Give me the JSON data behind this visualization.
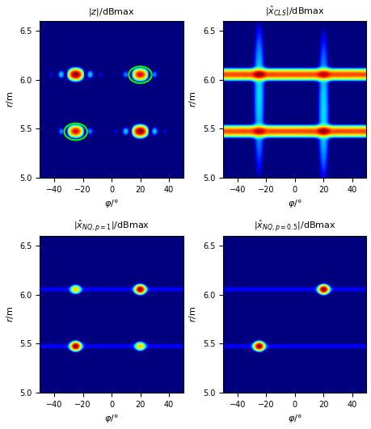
{
  "phi_range": [
    -50,
    50
  ],
  "r_range": [
    5.0,
    6.6
  ],
  "phi_ticks": [
    -40,
    -20,
    0,
    20,
    40
  ],
  "r_ticks": [
    5.0,
    5.5,
    6.0,
    6.5
  ],
  "targets": [
    {
      "phi": -25,
      "r": 6.05,
      "amp": 1.0
    },
    {
      "phi": 20,
      "r": 6.05,
      "amp": 0.7
    },
    {
      "phi": -25,
      "r": 5.47,
      "amp": 0.7
    },
    {
      "phi": 20,
      "r": 5.47,
      "amp": 1.0
    }
  ],
  "circles_tl": [
    {
      "phi": 20,
      "r": 6.05
    },
    {
      "phi": -25,
      "r": 5.47
    }
  ],
  "sparse_p1": [
    {
      "phi": -25,
      "r": 6.05,
      "amp": 0.25
    },
    {
      "phi": 20,
      "r": 6.05,
      "amp": 1.0
    },
    {
      "phi": -25,
      "r": 5.47,
      "amp": 1.0
    },
    {
      "phi": 20,
      "r": 5.47,
      "amp": 0.25
    }
  ],
  "sparse_p05": [
    {
      "phi": 20,
      "r": 6.05,
      "amp": 1.0
    },
    {
      "phi": -25,
      "r": 5.47,
      "amp": 1.0
    }
  ],
  "figsize": [
    4.59,
    5.31
  ],
  "dpi": 100
}
